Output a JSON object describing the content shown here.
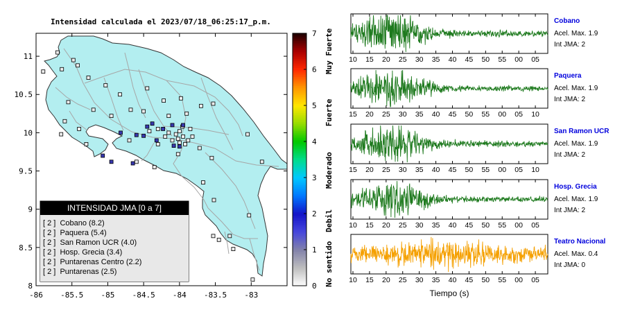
{
  "header": {
    "title": "Intensidad calculada el 2023/07/18_06:25:17_p.m."
  },
  "colors": {
    "land": "#b3eef0",
    "sea": "#ffffff",
    "roads": "#a6a6a6",
    "trace": "#1e7a1e",
    "trace_alt": "#f5a000",
    "station_name": "#0000dd"
  },
  "chart_data": [
    {
      "type": "scatter",
      "title": "Intensidad calculada el 2023/07/18_06:25:17_p.m.",
      "xlim": [
        -86,
        -82.5
      ],
      "ylim": [
        8,
        11.3
      ],
      "x_ticks": [
        "-86",
        "-85.5",
        "-85",
        "-84.5",
        "-84",
        "-83.5",
        "-83"
      ],
      "y_ticks": [
        "8",
        "8.5",
        "9",
        "9.5",
        "10",
        "10.5",
        "11"
      ],
      "grid": false,
      "stations": [
        {
          "lon": -85.7,
          "lat": 11.05,
          "i": 0
        },
        {
          "lon": -85.48,
          "lat": 10.95,
          "i": 0
        },
        {
          "lon": -85.42,
          "lat": 10.88,
          "i": 0
        },
        {
          "lon": -85.9,
          "lat": 10.8,
          "i": 0
        },
        {
          "lon": -85.64,
          "lat": 10.83,
          "i": 0
        },
        {
          "lon": -85.27,
          "lat": 10.72,
          "i": 0
        },
        {
          "lon": -85.03,
          "lat": 10.62,
          "i": 0
        },
        {
          "lon": -84.83,
          "lat": 10.5,
          "i": 0
        },
        {
          "lon": -84.45,
          "lat": 10.58,
          "i": 0
        },
        {
          "lon": -84.22,
          "lat": 10.42,
          "i": 0
        },
        {
          "lon": -83.98,
          "lat": 10.45,
          "i": 0
        },
        {
          "lon": -83.7,
          "lat": 10.35,
          "i": 0
        },
        {
          "lon": -83.53,
          "lat": 10.38,
          "i": 0
        },
        {
          "lon": -85.55,
          "lat": 10.4,
          "i": 0
        },
        {
          "lon": -85.2,
          "lat": 10.3,
          "i": 0
        },
        {
          "lon": -85.6,
          "lat": 10.15,
          "i": 0
        },
        {
          "lon": -85.65,
          "lat": 9.98,
          "i": 0
        },
        {
          "lon": -85.4,
          "lat": 10.05,
          "i": 0
        },
        {
          "lon": -85.3,
          "lat": 9.85,
          "i": 0
        },
        {
          "lon": -84.95,
          "lat": 10.22,
          "i": 0
        },
        {
          "lon": -84.68,
          "lat": 10.3,
          "i": 0
        },
        {
          "lon": -84.5,
          "lat": 10.28,
          "i": 0
        },
        {
          "lon": -84.15,
          "lat": 10.22,
          "i": 0
        },
        {
          "lon": -83.9,
          "lat": 10.25,
          "i": 0
        },
        {
          "lon": -83.85,
          "lat": 10.05,
          "i": 0
        },
        {
          "lon": -84.3,
          "lat": 9.85,
          "i": 0
        },
        {
          "lon": -84.7,
          "lat": 9.9,
          "i": 0
        },
        {
          "lon": -84.6,
          "lat": 9.62,
          "i": 0
        },
        {
          "lon": -84.35,
          "lat": 9.55,
          "i": 0
        },
        {
          "lon": -84.02,
          "lat": 9.72,
          "i": 0
        },
        {
          "lon": -83.72,
          "lat": 9.8,
          "i": 0
        },
        {
          "lon": -83.55,
          "lat": 9.67,
          "i": 0
        },
        {
          "lon": -83.67,
          "lat": 9.35,
          "i": 0
        },
        {
          "lon": -83.05,
          "lat": 9.98,
          "i": 0
        },
        {
          "lon": -82.85,
          "lat": 9.62,
          "i": 0
        },
        {
          "lon": -83.52,
          "lat": 9.12,
          "i": 0
        },
        {
          "lon": -83.45,
          "lat": 8.6,
          "i": 0
        },
        {
          "lon": -83.3,
          "lat": 8.65,
          "i": 0
        },
        {
          "lon": -83.03,
          "lat": 8.92,
          "i": 0
        },
        {
          "lon": -83.25,
          "lat": 8.48,
          "i": 0
        },
        {
          "lon": -82.98,
          "lat": 8.08,
          "i": 0
        },
        {
          "lon": -83.53,
          "lat": 8.65,
          "i": 0
        },
        {
          "lon": -84.15,
          "lat": 10.0,
          "i": 0
        },
        {
          "lon": -84.05,
          "lat": 9.98,
          "i": 0
        },
        {
          "lon": -84.0,
          "lat": 10.02,
          "i": 0
        },
        {
          "lon": -83.95,
          "lat": 9.95,
          "i": 0
        },
        {
          "lon": -84.02,
          "lat": 9.92,
          "i": 0
        },
        {
          "lon": -84.1,
          "lat": 9.9,
          "i": 0
        },
        {
          "lon": -84.2,
          "lat": 9.95,
          "i": 0
        },
        {
          "lon": -83.88,
          "lat": 9.9,
          "i": 0
        },
        {
          "lon": -83.92,
          "lat": 9.85,
          "i": 0
        },
        {
          "lon": -84.3,
          "lat": 10.05,
          "i": 0
        },
        {
          "lon": -84.42,
          "lat": 10.02,
          "i": 0
        },
        {
          "lon": -84.0,
          "lat": 9.87,
          "i": 0
        },
        {
          "lon": -83.82,
          "lat": 9.95,
          "i": 0
        },
        {
          "lon": -83.96,
          "lat": 10.08,
          "i": 0
        },
        {
          "lon": -84.45,
          "lat": 10.08,
          "i": 2
        },
        {
          "lon": -84.23,
          "lat": 10.05,
          "i": 2
        },
        {
          "lon": -84.82,
          "lat": 10.0,
          "i": 2
        },
        {
          "lon": -84.6,
          "lat": 9.97,
          "i": 2
        },
        {
          "lon": -84.1,
          "lat": 10.1,
          "i": 2
        },
        {
          "lon": -83.95,
          "lat": 10.1,
          "i": 2
        },
        {
          "lon": -84.38,
          "lat": 10.12,
          "i": 2
        },
        {
          "lon": -85.07,
          "lat": 9.7,
          "i": 2
        },
        {
          "lon": -84.32,
          "lat": 9.9,
          "i": 2
        },
        {
          "lon": -84.95,
          "lat": 9.62,
          "i": 2
        },
        {
          "lon": -84.5,
          "lat": 9.96,
          "i": 2
        },
        {
          "lon": -84.65,
          "lat": 9.6,
          "i": 2
        },
        {
          "lon": -84.08,
          "lat": 9.83,
          "i": 2
        },
        {
          "lon": -84.0,
          "lat": 9.82,
          "i": 2
        }
      ]
    },
    {
      "type": "heatmap",
      "name": "intensity_colorbar",
      "range": [
        0,
        7
      ],
      "ticks": [
        "0",
        "1",
        "2",
        "3",
        "4",
        "5",
        "6",
        "7"
      ],
      "category_labels": [
        "No sentido",
        "Debil",
        "Moderado",
        "Fuerte",
        "Muy Fuerte"
      ]
    },
    {
      "type": "line",
      "name": "waveforms",
      "xlabel": "Tiempo (s)",
      "traces": [
        {
          "station": "Cobano",
          "acel": "Acel. Max. 1.9",
          "jma": "Int JMA: 2",
          "ticks": [
            "10",
            "15",
            "20",
            "25",
            "30",
            "35",
            "40",
            "45",
            "50",
            "55",
            "00",
            "05"
          ],
          "tick_top": true,
          "color": "green"
        },
        {
          "station": "Paquera",
          "acel": "Acel. Max. 1.9",
          "jma": "Int JMA: 2",
          "ticks": [
            "15",
            "20",
            "25",
            "30",
            "35",
            "40",
            "45",
            "50",
            "55",
            "00",
            "05",
            "10"
          ],
          "tick_top": false,
          "color": "green"
        },
        {
          "station": "San Ramon UCR",
          "acel": "Acel. Max. 1.9",
          "jma": "Int JMA: 2",
          "ticks": [
            "15",
            "20",
            "25",
            "30",
            "35",
            "40",
            "45",
            "50",
            "55",
            "00",
            "05",
            "10"
          ],
          "tick_top": false,
          "color": "green"
        },
        {
          "station": "Hosp. Grecia",
          "acel": "Acel. Max. 1.9",
          "jma": "Int JMA: 2",
          "ticks": [
            "10",
            "15",
            "20",
            "25",
            "30",
            "35",
            "40",
            "45",
            "50",
            "55",
            "00",
            "05"
          ],
          "tick_top": true,
          "color": "green"
        },
        {
          "station": "Teatro Nacional",
          "acel": "Acel. Max. 0.4",
          "jma": "Int JMA: 0",
          "ticks": [
            "10",
            "15",
            "20",
            "25",
            "30",
            "35",
            "40",
            "45",
            "50",
            "55",
            "00",
            "05"
          ],
          "tick_top": false,
          "color": "orange"
        }
      ]
    }
  ],
  "legend": {
    "header": "INTENSIDAD JMA [0 a 7]",
    "rows": [
      "[ 2 ]  Cobano (8.2)",
      "[ 2 ]  Paquera (5.4)",
      "[ 2 ]  San Ramon UCR (4.0)",
      "[ 2 ]  Hosp. Grecia (3.4)",
      "[ 2 ]  Puntarenas Centro (2.2)",
      "[ 2 ]  Puntarenas (2.5)"
    ]
  }
}
